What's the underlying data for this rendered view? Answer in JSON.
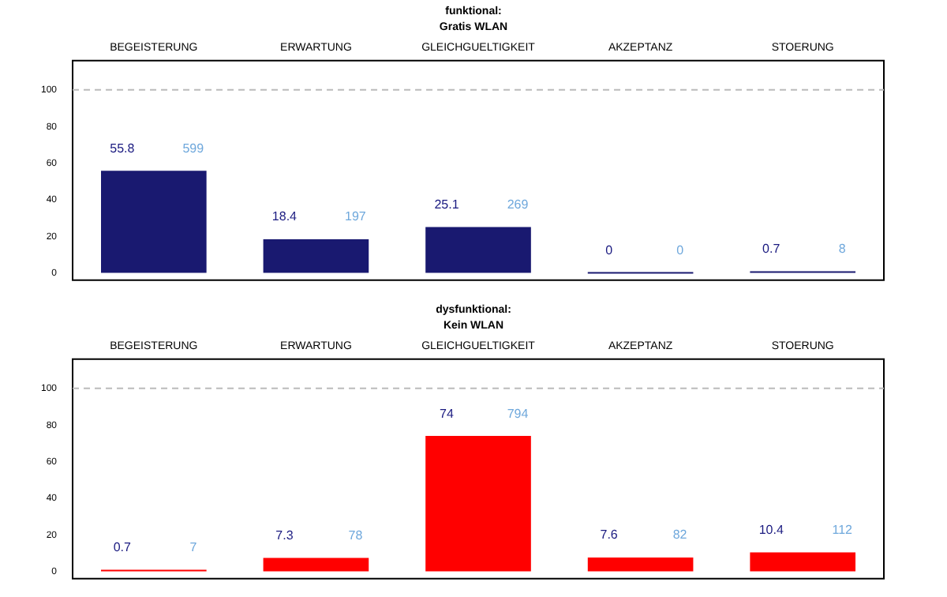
{
  "chart_data": [
    {
      "type": "bar",
      "title": "funktional:",
      "subtitle": "Gratis WLAN",
      "categories": [
        "BEGEISTERUNG",
        "ERWARTUNG",
        "GLEICHGUELTIGKEIT",
        "AKZEPTANZ",
        "STOERUNG"
      ],
      "values": [
        55.8,
        18.4,
        25.1,
        0,
        0.7
      ],
      "color": "#191970",
      "data_labels": true,
      "ylim": [
        -4,
        116
      ],
      "yticks": [
        0,
        20,
        40,
        60,
        80,
        100
      ],
      "grid": false,
      "legend": false,
      "ref_lines": [
        {
          "axis": "y",
          "value": 100,
          "color": "#bbbbbb",
          "line_style": "dashed"
        }
      ],
      "annotations": [
        "599",
        "197",
        "269",
        "0",
        "8"
      ]
    },
    {
      "type": "bar",
      "title": "dysfunktional:",
      "subtitle": "Kein WLAN",
      "categories": [
        "BEGEISTERUNG",
        "ERWARTUNG",
        "GLEICHGUELTIGKEIT",
        "AKZEPTANZ",
        "STOERUNG"
      ],
      "values": [
        0.7,
        7.3,
        74,
        7.6,
        10.4
      ],
      "color": "#ff0000",
      "data_labels": true,
      "ylim": [
        -4,
        116
      ],
      "yticks": [
        0,
        20,
        40,
        60,
        80,
        100
      ],
      "grid": false,
      "legend": false,
      "ref_lines": [
        {
          "axis": "y",
          "value": 100,
          "color": "#bbbbbb",
          "line_style": "dashed"
        }
      ],
      "annotations": [
        "7",
        "78",
        "794",
        "82",
        "112"
      ]
    }
  ]
}
